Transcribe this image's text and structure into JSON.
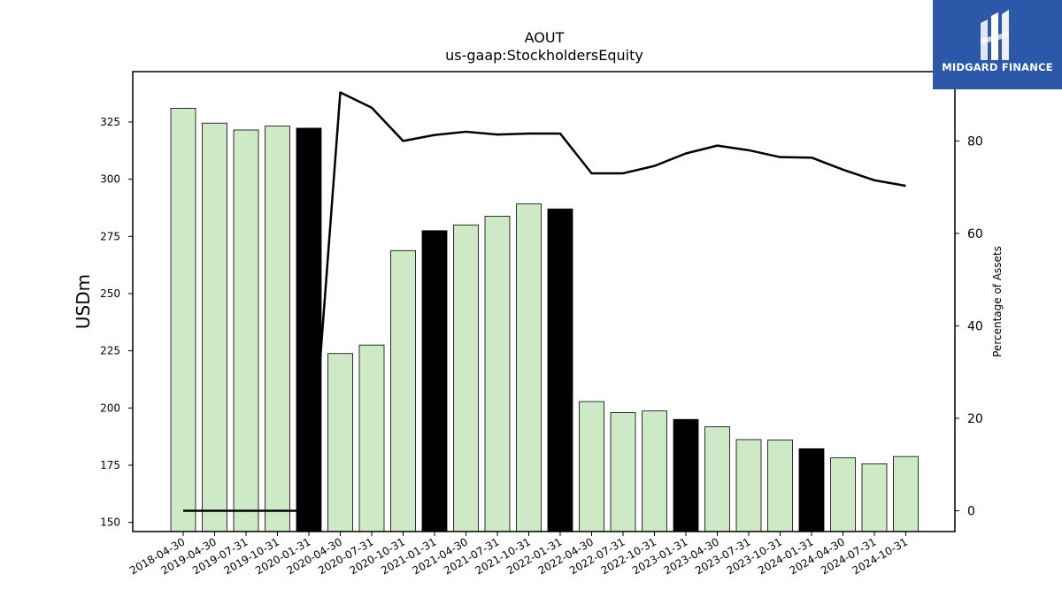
{
  "logo": {
    "text": "MIDGARD FINANCE",
    "icon": "midgard-logo-icon",
    "background": "#2b58a8"
  },
  "chart_data": {
    "type": "bar",
    "title": "AOUT",
    "subtitle": "us-gaap:StockholdersEquity",
    "ylabel": "USDm",
    "y2label": "Percentage of Assets",
    "ylim": [
      146,
      347
    ],
    "y2lim": [
      -4.5,
      95
    ],
    "yticks": [
      150,
      175,
      200,
      225,
      250,
      275,
      300,
      325
    ],
    "y2ticks": [
      0,
      20,
      40,
      60,
      80
    ],
    "grid": false,
    "colors": {
      "bar": "#cde9c5",
      "highlight": "#000000",
      "edge": "#000000",
      "line": "#000000"
    },
    "categories": [
      "2018-04-30",
      "2019-04-30",
      "2019-07-31",
      "2019-10-31",
      "2020-01-31",
      "2020-04-30",
      "2020-07-31",
      "2020-10-31",
      "2021-01-31",
      "2021-04-30",
      "2021-07-31",
      "2021-10-31",
      "2022-01-31",
      "2022-04-30",
      "2022-07-31",
      "2022-10-31",
      "2023-01-31",
      "2023-04-30",
      "2023-07-31",
      "2023-10-31",
      "2024-01-31",
      "2024-04-30",
      "2024-07-31",
      "2024-10-31"
    ],
    "values": [
      331.0,
      324.5,
      321.5,
      323.2,
      322.3,
      223.8,
      227.5,
      268.8,
      277.5,
      280.0,
      283.8,
      289.2,
      287.0,
      202.8,
      198.0,
      198.7,
      195.0,
      191.8,
      186.2,
      186.0,
      182.2,
      178.2,
      175.6,
      178.8
    ],
    "highlight": [
      false,
      false,
      false,
      false,
      true,
      false,
      false,
      false,
      true,
      false,
      false,
      false,
      true,
      false,
      false,
      false,
      true,
      false,
      false,
      false,
      true,
      false,
      false,
      false
    ],
    "series": [
      {
        "axis": "secondary",
        "type": "line",
        "values": [
          0.0,
          0.0,
          0.0,
          0.0,
          0.0,
          90.5,
          87.2,
          80.0,
          81.3,
          82.0,
          81.4,
          81.6,
          81.6,
          73.0,
          73.0,
          74.6,
          77.3,
          79.0,
          78.0,
          76.5,
          76.4,
          73.8,
          71.5,
          70.3
        ]
      }
    ]
  }
}
